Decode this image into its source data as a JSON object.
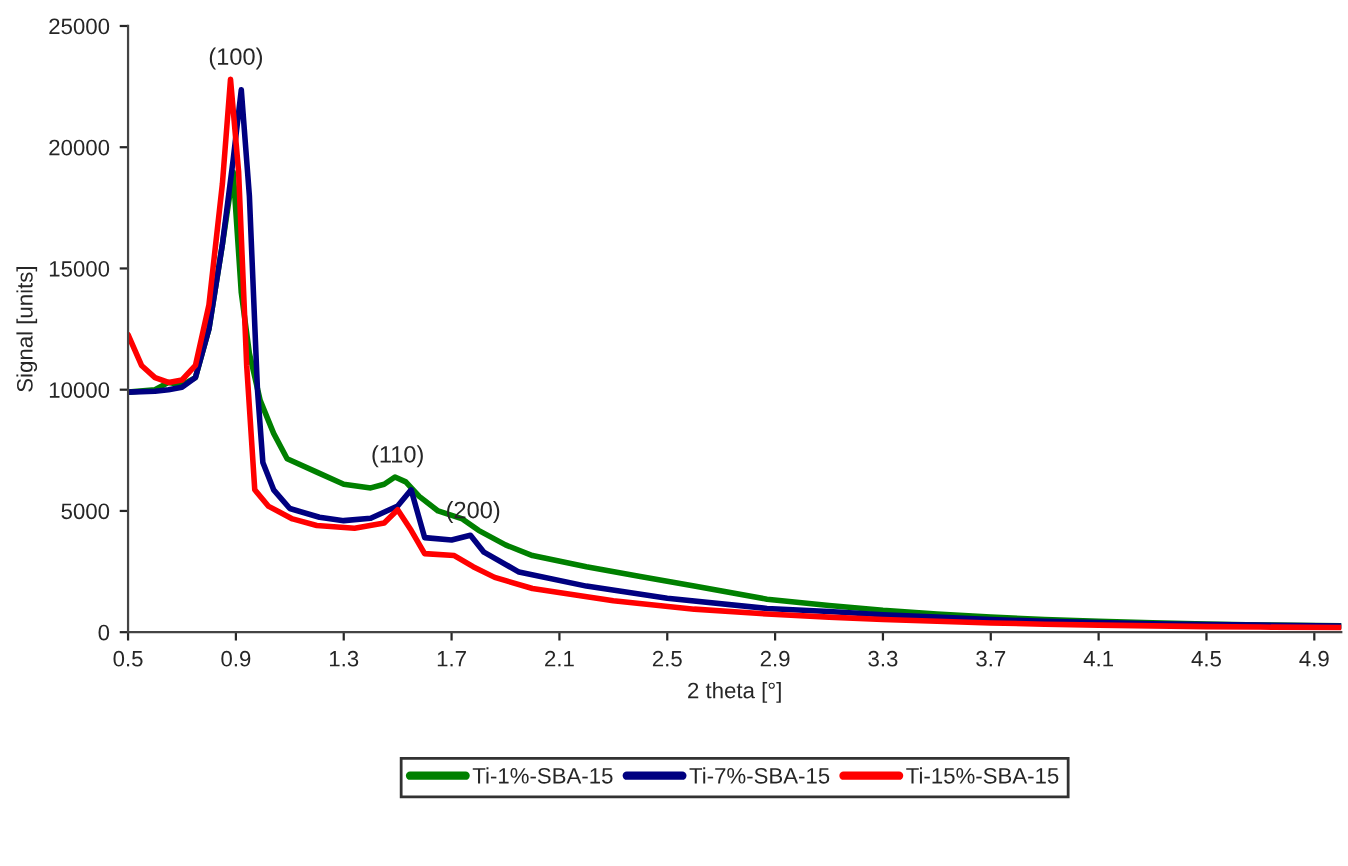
{
  "chart_data": {
    "type": "line",
    "xlabel": "2 theta [°]",
    "ylabel": "Signal [units]",
    "xlim": [
      0.5,
      5.0
    ],
    "xticks": [
      0.5,
      0.9,
      1.3,
      1.7,
      2.1,
      2.5,
      2.9,
      3.3,
      3.7,
      4.1,
      4.5,
      4.9
    ],
    "ylim": [
      0,
      25000
    ],
    "yticks": [
      0,
      5000,
      10000,
      15000,
      20000,
      25000
    ],
    "grid": false,
    "legend": "bottom",
    "marker": "none",
    "line_style": "solid",
    "annotations": [
      {
        "text": "(100)",
        "x": 0.9,
        "y": 23200
      },
      {
        "text": "(110)",
        "x": 1.5,
        "y": 6800
      },
      {
        "text": "(200)",
        "x": 1.78,
        "y": 4500
      }
    ],
    "series": [
      {
        "name": "Ti-1%-SBA-15",
        "color": "#008000",
        "x": [
          0.5,
          0.6,
          0.65,
          0.7,
          0.75,
          0.8,
          0.85,
          0.89,
          0.92,
          0.95,
          0.99,
          1.04,
          1.09,
          1.2,
          1.3,
          1.4,
          1.45,
          1.49,
          1.53,
          1.58,
          1.65,
          1.74,
          1.8,
          1.9,
          2.0,
          2.2,
          2.4,
          2.6,
          2.87,
          3.1,
          3.3,
          3.5,
          3.7,
          3.9,
          4.1,
          4.3,
          4.5,
          4.7,
          5.0
        ],
        "values": [
          9900,
          10000,
          10300,
          10200,
          10500,
          12500,
          16000,
          18980,
          14000,
          11500,
          9560,
          8200,
          7150,
          6600,
          6100,
          5950,
          6100,
          6400,
          6200,
          5600,
          5000,
          4670,
          4200,
          3600,
          3160,
          2700,
          2300,
          1900,
          1360,
          1100,
          900,
          750,
          620,
          520,
          450,
          390,
          340,
          300,
          260
        ]
      },
      {
        "name": "Ti-7%-SBA-15",
        "color": "#000080",
        "x": [
          0.5,
          0.6,
          0.65,
          0.7,
          0.75,
          0.8,
          0.85,
          0.89,
          0.92,
          0.95,
          0.98,
          1.0,
          1.04,
          1.1,
          1.21,
          1.3,
          1.4,
          1.5,
          1.55,
          1.6,
          1.7,
          1.77,
          1.82,
          1.95,
          2.2,
          2.5,
          2.87,
          3.1,
          3.3,
          3.5,
          3.7,
          3.9,
          4.1,
          4.3,
          4.5,
          4.7,
          5.0
        ],
        "values": [
          9900,
          9940,
          10000,
          10100,
          10500,
          12500,
          16000,
          19500,
          22370,
          18000,
          10000,
          7000,
          5870,
          5100,
          4740,
          4600,
          4700,
          5200,
          5870,
          3900,
          3800,
          4000,
          3300,
          2480,
          1900,
          1400,
          980,
          850,
          720,
          620,
          520,
          450,
          400,
          350,
          320,
          290,
          250
        ]
      },
      {
        "name": "Ti-15%-SBA-15",
        "color": "#ff0000",
        "x": [
          0.5,
          0.55,
          0.6,
          0.65,
          0.7,
          0.75,
          0.8,
          0.85,
          0.88,
          0.91,
          0.94,
          0.97,
          1.02,
          1.11,
          1.2,
          1.34,
          1.45,
          1.5,
          1.55,
          1.6,
          1.71,
          1.78,
          1.86,
          2.0,
          2.3,
          2.6,
          2.87,
          3.1,
          3.3,
          3.5,
          3.7,
          3.9,
          4.1,
          4.3,
          4.5,
          4.7,
          5.0
        ],
        "values": [
          12270,
          11000,
          10500,
          10300,
          10400,
          11000,
          13500,
          18500,
          22800,
          19000,
          11000,
          5870,
          5200,
          4670,
          4400,
          4290,
          4500,
          5050,
          4200,
          3240,
          3160,
          2700,
          2260,
          1800,
          1300,
          950,
          750,
          620,
          520,
          450,
          380,
          330,
          290,
          260,
          230,
          210,
          190
        ]
      }
    ]
  }
}
